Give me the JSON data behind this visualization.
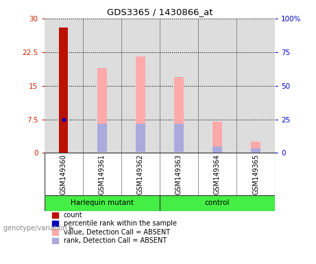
{
  "title": "GDS3365 / 1430866_at",
  "samples": [
    "GSM149360",
    "GSM149361",
    "GSM149362",
    "GSM149363",
    "GSM149364",
    "GSM149365"
  ],
  "count_values": [
    28.0,
    0,
    0,
    0,
    0,
    0
  ],
  "count_color": "#BB1100",
  "percentile_rank_values": [
    7.5,
    0,
    0,
    0,
    0,
    0
  ],
  "percentile_rank_color": "#0000BB",
  "absent_value_top": [
    0,
    19.0,
    21.5,
    17.0,
    7.0,
    2.5
  ],
  "absent_value_bottom": [
    0,
    0.3,
    6.5,
    6.5,
    1.5,
    0.5
  ],
  "absent_value_color": "#FFAAAA",
  "absent_rank_top": [
    0,
    6.5,
    6.5,
    6.5,
    1.5,
    1.0
  ],
  "absent_rank_bottom": [
    0,
    0.3,
    0.3,
    0.3,
    0.0,
    0.0
  ],
  "absent_rank_color": "#AAAADD",
  "ylim_left": [
    0,
    30
  ],
  "ylim_right": [
    0,
    100
  ],
  "yticks_left": [
    0,
    7.5,
    15,
    22.5,
    30
  ],
  "ytick_labels_left": [
    "0",
    "7.5",
    "15",
    "22.5",
    "30"
  ],
  "yticks_right": [
    0,
    25,
    50,
    75,
    100
  ],
  "ytick_labels_right": [
    "0",
    "25",
    "50",
    "75",
    "100%"
  ],
  "left_tick_color": "#CC2200",
  "right_tick_color": "#0000CC",
  "bar_width": 0.25,
  "group_boundaries": [
    0,
    3,
    6
  ],
  "group_labels": [
    "Harlequin mutant",
    "control"
  ],
  "group_color": "#44EE44",
  "genotype_label": "genotype/variation",
  "legend_items": [
    {
      "label": "count",
      "color": "#BB1100"
    },
    {
      "label": "percentile rank within the sample",
      "color": "#0000BB"
    },
    {
      "label": "value, Detection Call = ABSENT",
      "color": "#FFAAAA"
    },
    {
      "label": "rank, Detection Call = ABSENT",
      "color": "#AAAADD"
    }
  ],
  "plot_bg_color": "#DDDDDD",
  "sample_area_bg": "#CCCCCC",
  "figure_bg_color": "#FFFFFF"
}
